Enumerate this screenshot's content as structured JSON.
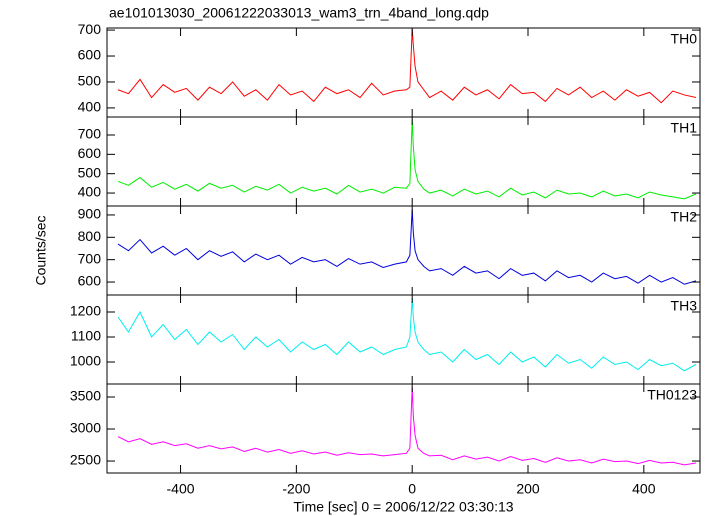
{
  "chart_data": [
    {
      "type": "line",
      "title": "ae101013030_20061222033013_wam3_trn_4band_long.qdp",
      "x": [
        -508,
        -490,
        -470,
        -450,
        -430,
        -410,
        -390,
        -370,
        -350,
        -330,
        -310,
        -290,
        -270,
        -250,
        -230,
        -210,
        -190,
        -170,
        -150,
        -130,
        -110,
        -90,
        -70,
        -50,
        -30,
        -10,
        -4,
        0,
        2,
        5,
        10,
        20,
        30,
        50,
        70,
        90,
        110,
        130,
        150,
        170,
        190,
        210,
        230,
        250,
        270,
        290,
        310,
        330,
        350,
        370,
        390,
        410,
        430,
        450,
        470,
        490
      ],
      "series": [
        {
          "name": "TH0",
          "color": "#ff0000",
          "values": [
            470,
            455,
            510,
            440,
            490,
            460,
            475,
            430,
            480,
            455,
            500,
            445,
            470,
            430,
            490,
            450,
            465,
            425,
            480,
            455,
            470,
            440,
            495,
            450,
            465,
            470,
            480,
            705,
            640,
            560,
            500,
            470,
            440,
            465,
            430,
            480,
            450,
            470,
            435,
            490,
            455,
            460,
            425,
            475,
            450,
            480,
            440,
            465,
            430,
            470,
            445,
            460,
            420,
            465,
            450,
            440
          ]
        }
      ],
      "xlim": [
        -527,
        497
      ],
      "xticks": [
        -400,
        -200,
        0,
        200,
        400
      ],
      "ylim": [
        365,
        708
      ],
      "yticks": [
        400,
        500,
        600,
        700
      ]
    },
    {
      "type": "line",
      "x": [
        -508,
        -490,
        -470,
        -450,
        -430,
        -410,
        -390,
        -370,
        -350,
        -330,
        -310,
        -290,
        -270,
        -250,
        -230,
        -210,
        -190,
        -170,
        -150,
        -130,
        -110,
        -90,
        -70,
        -50,
        -30,
        -10,
        -4,
        0,
        2,
        5,
        10,
        20,
        30,
        50,
        70,
        90,
        110,
        130,
        150,
        170,
        190,
        210,
        230,
        250,
        270,
        290,
        310,
        330,
        350,
        370,
        390,
        410,
        430,
        450,
        470,
        490
      ],
      "series": [
        {
          "name": "TH1",
          "color": "#00ee00",
          "values": [
            460,
            440,
            480,
            430,
            455,
            420,
            445,
            410,
            450,
            425,
            440,
            405,
            435,
            415,
            445,
            400,
            430,
            410,
            425,
            395,
            440,
            405,
            420,
            400,
            430,
            425,
            450,
            780,
            640,
            520,
            460,
            420,
            400,
            415,
            385,
            420,
            395,
            410,
            380,
            425,
            390,
            405,
            375,
            415,
            395,
            400,
            380,
            410,
            385,
            395,
            375,
            405,
            390,
            380,
            370,
            395
          ]
        }
      ],
      "xlim": [
        -527,
        497
      ],
      "xticks": [
        -400,
        -200,
        0,
        200,
        400
      ],
      "ylim": [
        333,
        793
      ],
      "yticks": [
        400,
        500,
        600,
        700
      ]
    },
    {
      "type": "line",
      "ylabel": "Counts/sec",
      "x": [
        -508,
        -490,
        -470,
        -450,
        -430,
        -410,
        -390,
        -370,
        -350,
        -330,
        -310,
        -290,
        -270,
        -250,
        -230,
        -210,
        -190,
        -170,
        -150,
        -130,
        -110,
        -90,
        -70,
        -50,
        -30,
        -10,
        -4,
        0,
        2,
        5,
        10,
        20,
        30,
        50,
        70,
        90,
        110,
        130,
        150,
        170,
        190,
        210,
        230,
        250,
        270,
        290,
        310,
        330,
        350,
        370,
        390,
        410,
        430,
        450,
        470,
        490
      ],
      "series": [
        {
          "name": "TH2",
          "color": "#0000dd",
          "values": [
            770,
            740,
            790,
            730,
            760,
            720,
            750,
            700,
            740,
            715,
            735,
            690,
            725,
            700,
            720,
            680,
            710,
            690,
            700,
            670,
            705,
            680,
            690,
            665,
            680,
            690,
            720,
            925,
            820,
            740,
            700,
            670,
            650,
            660,
            630,
            670,
            640,
            650,
            615,
            660,
            630,
            640,
            605,
            650,
            620,
            630,
            600,
            640,
            615,
            625,
            595,
            630,
            600,
            620,
            590,
            605
          ]
        }
      ],
      "xlim": [
        -527,
        497
      ],
      "xticks": [
        -400,
        -200,
        0,
        200,
        400
      ],
      "ylim": [
        542,
        940
      ],
      "yticks": [
        600,
        700,
        800,
        900
      ]
    },
    {
      "type": "line",
      "x": [
        -508,
        -490,
        -470,
        -450,
        -430,
        -410,
        -390,
        -370,
        -350,
        -330,
        -310,
        -290,
        -270,
        -250,
        -230,
        -210,
        -190,
        -170,
        -150,
        -130,
        -110,
        -90,
        -70,
        -50,
        -30,
        -10,
        -4,
        0,
        2,
        5,
        10,
        20,
        30,
        50,
        70,
        90,
        110,
        130,
        150,
        170,
        190,
        210,
        230,
        250,
        270,
        290,
        310,
        330,
        350,
        370,
        390,
        410,
        430,
        450,
        470,
        490
      ],
      "series": [
        {
          "name": "TH3",
          "color": "#00eeee",
          "values": [
            1180,
            1120,
            1200,
            1100,
            1150,
            1090,
            1130,
            1070,
            1120,
            1080,
            1110,
            1050,
            1100,
            1060,
            1090,
            1040,
            1080,
            1050,
            1070,
            1030,
            1080,
            1040,
            1060,
            1030,
            1050,
            1060,
            1100,
            1255,
            1180,
            1120,
            1080,
            1050,
            1030,
            1040,
            1000,
            1050,
            1010,
            1030,
            990,
            1040,
            1000,
            1020,
            980,
            1030,
            995,
            1010,
            975,
            1020,
            990,
            1000,
            970,
            1010,
            985,
            995,
            965,
            990
          ]
        }
      ],
      "xlim": [
        -527,
        497
      ],
      "xticks": [
        -400,
        -200,
        0,
        200,
        400
      ],
      "ylim": [
        912,
        1268
      ],
      "yticks": [
        1000,
        1100,
        1200
      ]
    },
    {
      "type": "line",
      "xlabel": "Time [sec] 0 = 2006/12/22 03:30:13",
      "x": [
        -508,
        -490,
        -470,
        -450,
        -430,
        -410,
        -390,
        -370,
        -350,
        -330,
        -310,
        -290,
        -270,
        -250,
        -230,
        -210,
        -190,
        -170,
        -150,
        -130,
        -110,
        -90,
        -70,
        -50,
        -30,
        -10,
        -4,
        0,
        2,
        5,
        10,
        20,
        30,
        50,
        70,
        90,
        110,
        130,
        150,
        170,
        190,
        210,
        230,
        250,
        270,
        290,
        310,
        330,
        350,
        370,
        390,
        410,
        430,
        450,
        470,
        490
      ],
      "series": [
        {
          "name": "TH0123",
          "color": "#ff00ff",
          "values": [
            2880,
            2800,
            2850,
            2760,
            2800,
            2740,
            2770,
            2700,
            2740,
            2690,
            2720,
            2650,
            2700,
            2640,
            2680,
            2620,
            2660,
            2610,
            2640,
            2590,
            2630,
            2600,
            2610,
            2580,
            2600,
            2620,
            2700,
            3650,
            3200,
            2900,
            2700,
            2620,
            2580,
            2590,
            2520,
            2580,
            2530,
            2560,
            2500,
            2570,
            2510,
            2540,
            2480,
            2550,
            2500,
            2520,
            2470,
            2530,
            2490,
            2500,
            2460,
            2510,
            2470,
            2480,
            2440,
            2470
          ]
        }
      ],
      "xlim": [
        -527,
        497
      ],
      "xticks": [
        -400,
        -200,
        0,
        200,
        400
      ],
      "ylim": [
        2313,
        3703
      ],
      "yticks": [
        2500,
        3000,
        3500
      ]
    }
  ]
}
